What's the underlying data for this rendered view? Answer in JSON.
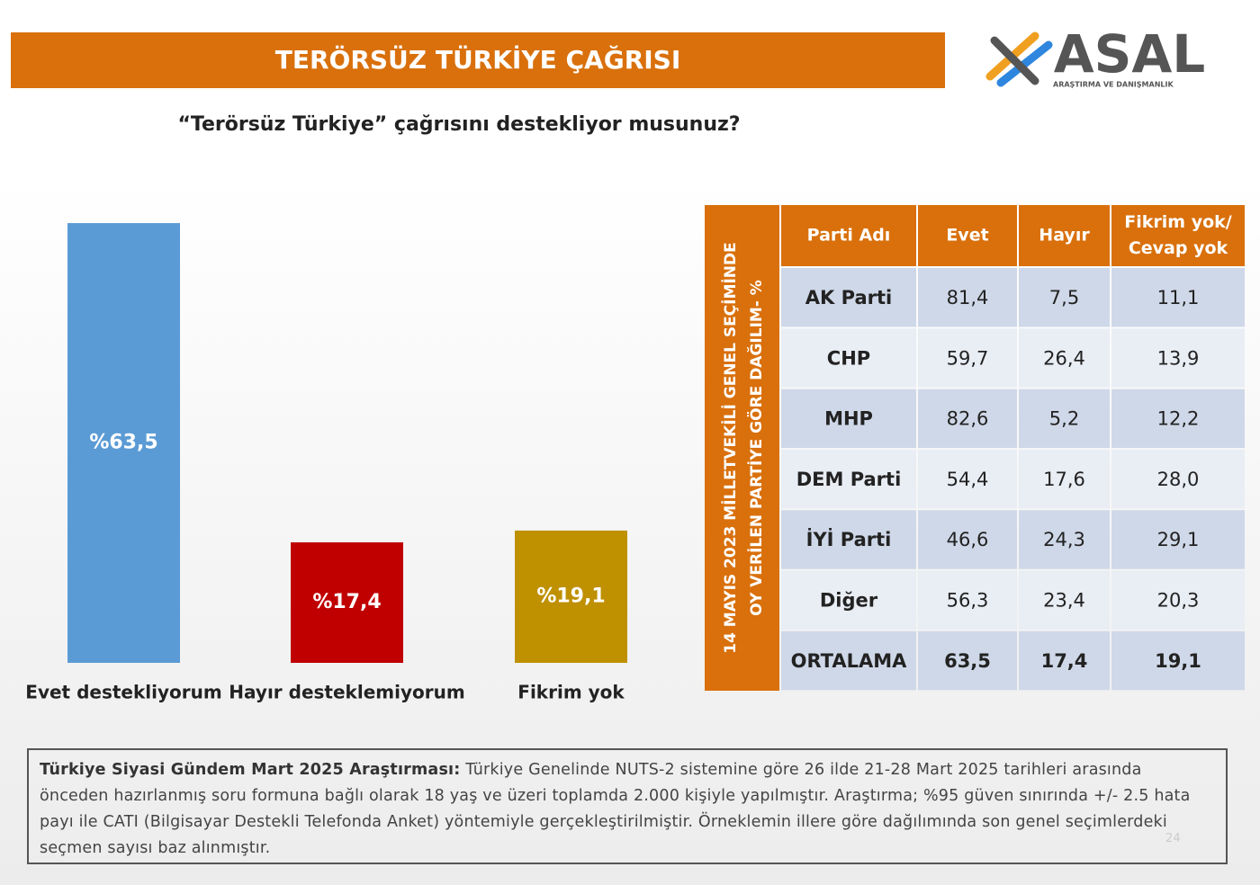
{
  "header": {
    "title": "TERÖRSÜZ TÜRKİYE ÇAĞRISI",
    "question": "“Terörsüz  Türkiye”  çağrısını  destekliyor musunuz?"
  },
  "logo": {
    "name": "ASAL",
    "tagline": "ARAŞTIRMA VE DANIŞMANLIK"
  },
  "chart_data": {
    "type": "bar",
    "categories": [
      "Evet destekliyorum",
      "Hayır desteklemiyorum",
      "Fikrim yok"
    ],
    "values": [
      63.5,
      17.4,
      19.1
    ],
    "value_labels": [
      "%63,5",
      "%17,4",
      "%19,1"
    ],
    "colors": [
      "#5b9bd5",
      "#c00000",
      "#bf9000"
    ]
  },
  "table": {
    "side_label": [
      "14 MAYIS 2023 MİLLETVEKİLİ GENEL SEÇİMİNDE",
      "OY VERİLEN PARTİYE GÖRE DAĞILIM- %"
    ],
    "headers": [
      [
        "Parti Adı"
      ],
      [
        "Evet"
      ],
      [
        "Hayır"
      ],
      [
        "Fikrim yok/",
        "Cevap yok"
      ]
    ],
    "rows": [
      [
        "AK Parti",
        "81,4",
        "7,5",
        "11,1"
      ],
      [
        "CHP",
        "59,7",
        "26,4",
        "13,9"
      ],
      [
        "MHP",
        "82,6",
        "5,2",
        "12,2"
      ],
      [
        "DEM Parti",
        "54,4",
        "17,6",
        "28,0"
      ],
      [
        "İYİ Parti",
        "46,6",
        "24,3",
        "29,1"
      ],
      [
        "Diğer",
        "56,3",
        "23,4",
        "20,3"
      ],
      [
        "ORTALAMA",
        "63,5",
        "17,4",
        "19,1"
      ]
    ]
  },
  "footnote": {
    "lead": "Türkiye Siyasi Gündem Mart 2025 Araştırması:",
    "text": " Türkiye Genelinde NUTS-2 sistemine göre 26 ilde 21-28 Mart 2025 tarihleri arasında önceden hazırlanmış soru formuna bağlı olarak 18 yaş ve üzeri toplamda 2.000 kişiyle yapılmıştır. Araştırma; %95 güven sınırında +/- 2.5 hata payı ile CATI (Bilgisayar Destekli Telefonda Anket) yöntemiyle gerçekleştirilmiştir. Örneklemin illere göre dağılımında son genel seçimlerdeki seçmen sayısı baz alınmıştır.",
    "page": "24"
  }
}
